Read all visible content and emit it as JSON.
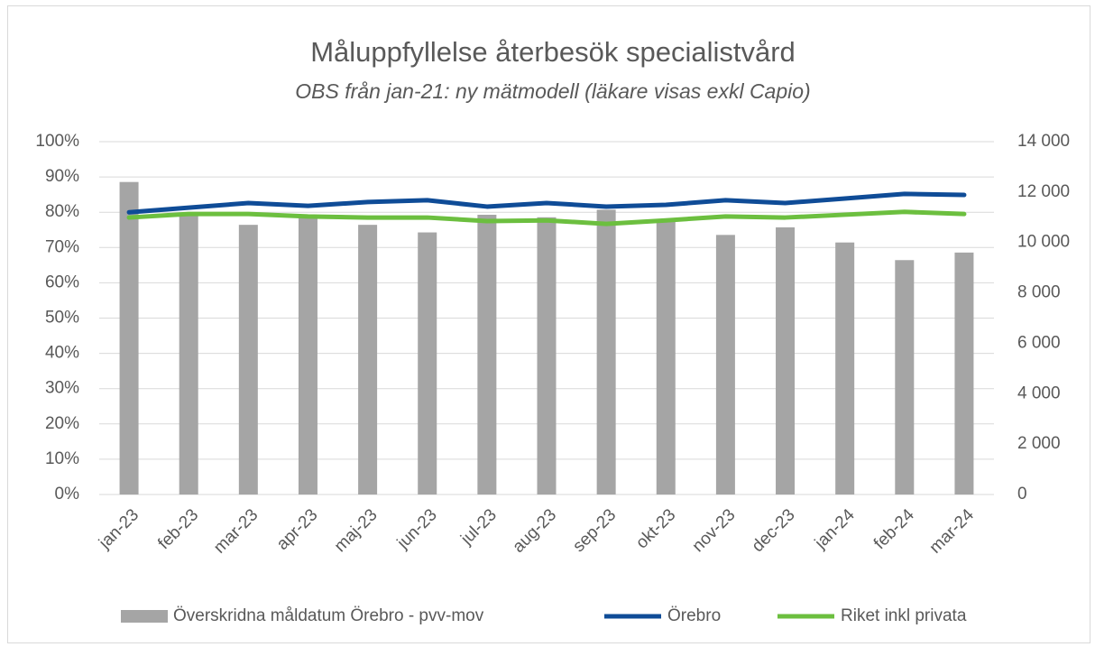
{
  "chart_data": {
    "type": "bar",
    "title": "Måluppfyllelse återbesök specialistvård",
    "subtitle": "OBS från jan-21: ny mätmodell (läkare visas exkl Capio)",
    "categories": [
      "jan-23",
      "feb-23",
      "mar-23",
      "apr-23",
      "maj-23",
      "jun-23",
      "jul-23",
      "aug-23",
      "sep-23",
      "okt-23",
      "nov-23",
      "dec-23",
      "jan-24",
      "feb-24",
      "mar-24"
    ],
    "series": [
      {
        "name": "Överskridna måldatum Örebro - pvv-mov",
        "type": "bar",
        "axis": "y2",
        "color": "#a5a5a5",
        "values": [
          12400,
          11100,
          10700,
          11000,
          10700,
          10400,
          11100,
          11000,
          11300,
          10900,
          10300,
          10600,
          10000,
          9300,
          9600
        ]
      },
      {
        "name": "Örebro",
        "type": "line",
        "color": "#0f4c97",
        "values": [
          80,
          81.3,
          82.6,
          81.8,
          82.9,
          83.4,
          81.6,
          82.6,
          81.6,
          82.1,
          83.4,
          82.6,
          83.9,
          85.2,
          84.9
        ]
      },
      {
        "name": "Riket inkl privata",
        "type": "line",
        "color": "#6cbf3f",
        "values": [
          78.5,
          79.5,
          79.5,
          78.8,
          78.5,
          78.5,
          77.5,
          77.7,
          76.7,
          77.7,
          78.8,
          78.5,
          79.3,
          80.1,
          79.5
        ]
      }
    ],
    "ylim": [
      0,
      100
    ],
    "yticks": [
      {
        "value": 0,
        "label": "0%"
      },
      {
        "value": 10,
        "label": "10%"
      },
      {
        "value": 20,
        "label": "20%"
      },
      {
        "value": 30,
        "label": "30%"
      },
      {
        "value": 40,
        "label": "40%"
      },
      {
        "value": 50,
        "label": "50%"
      },
      {
        "value": 60,
        "label": "60%"
      },
      {
        "value": 70,
        "label": "70%"
      },
      {
        "value": 80,
        "label": "80%"
      },
      {
        "value": 90,
        "label": "90%"
      },
      {
        "value": 100,
        "label": "100%"
      }
    ],
    "y2lim": [
      0,
      14000
    ],
    "y2ticks": [
      0,
      {
        "value": 2000,
        "label": "2 000"
      },
      {
        "value": 4000,
        "label": "4 000"
      },
      {
        "value": 6000,
        "label": "6 000"
      },
      {
        "value": 8000,
        "label": "8 000"
      },
      {
        "value": 10000,
        "label": "10 000"
      },
      {
        "value": 12000,
        "label": "12 000"
      },
      {
        "value": 14000,
        "label": "14 000"
      }
    ],
    "grid": true,
    "legend": "bottom"
  }
}
